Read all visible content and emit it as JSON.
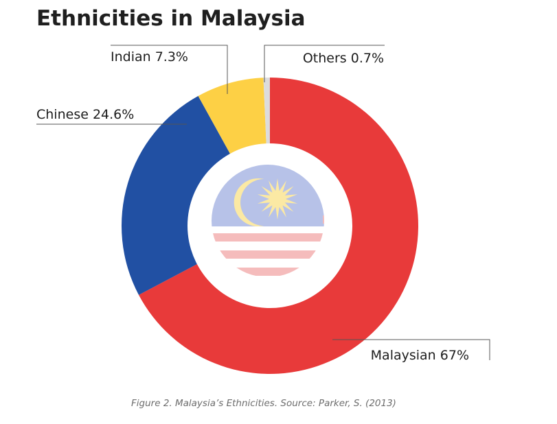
{
  "chart_data": {
    "type": "pie",
    "title": "Ethnicities in Malaysia",
    "series": [
      {
        "name": "Malaysian",
        "value": 67,
        "label": "Malaysian 67%",
        "color": "#e83a3a"
      },
      {
        "name": "Chinese",
        "value": 24.6,
        "label": "Chinese 24.6%",
        "color": "#2150a3"
      },
      {
        "name": "Indian",
        "value": 7.3,
        "label": "Indian 7.3%",
        "color": "#fdd045"
      },
      {
        "name": "Others",
        "value": 0.7,
        "label": "Others 0.7%",
        "color": "#dcdcdc"
      }
    ],
    "legend": "none",
    "center_image": "malaysia-flag-emblem"
  },
  "caption": "Figure 2. Malaysia’s Ethnicities. Source: Parker, S. (2013)",
  "flag_colors": {
    "canton": "#b7c2e8",
    "stripe": "#f5bcbc",
    "emblem": "#fbe9a4"
  }
}
